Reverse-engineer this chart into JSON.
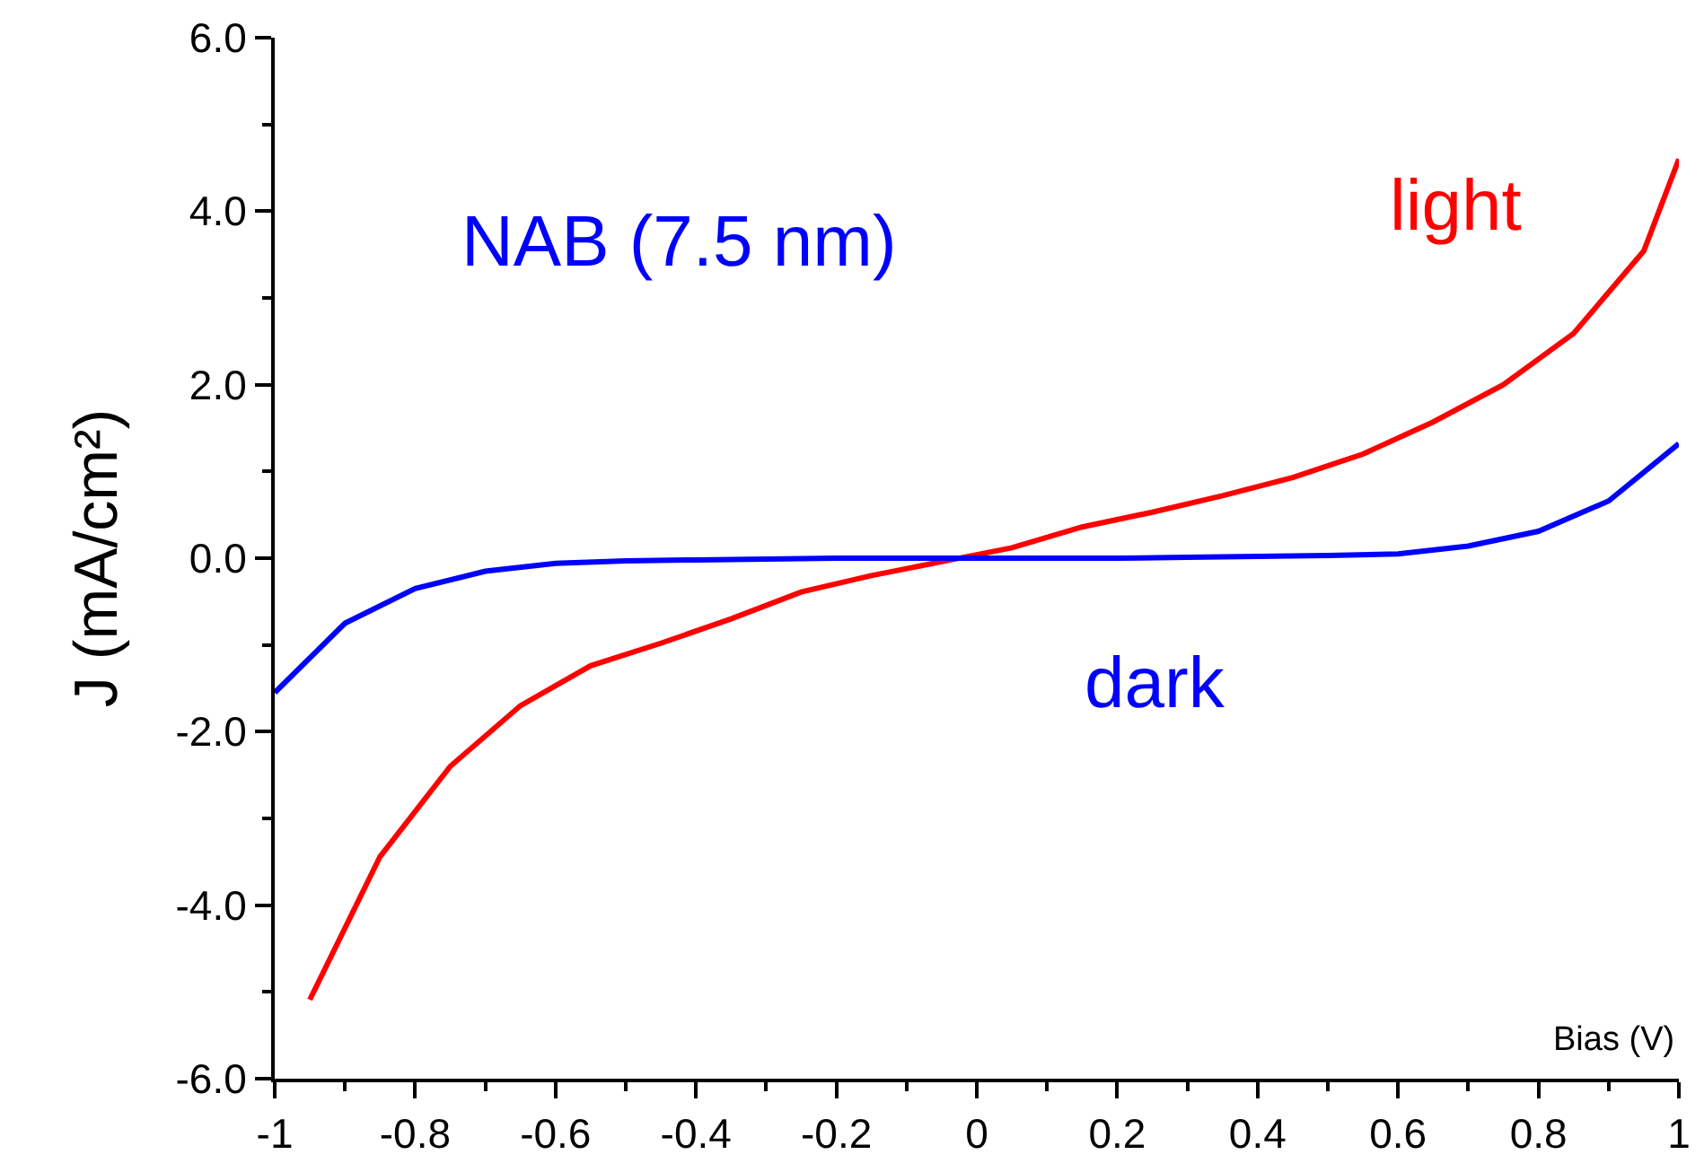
{
  "chart_data": {
    "type": "line",
    "xlabel": "Bias (V)",
    "ylabel": "J (mA/cm²)",
    "annotations": [
      "NAB (7.5 nm)"
    ],
    "series": [
      {
        "name": "light",
        "color": "#ff0000",
        "x": [
          -0.95,
          -0.85,
          -0.75,
          -0.65,
          -0.55,
          -0.45,
          -0.35,
          -0.25,
          -0.15,
          -0.05,
          0.05,
          0.15,
          0.25,
          0.35,
          0.45,
          0.55,
          0.65,
          0.75,
          0.85,
          0.95,
          1.0
        ],
        "values": [
          -5.09,
          -3.44,
          -2.4,
          -1.7,
          -1.24,
          -0.98,
          -0.7,
          -0.39,
          -0.2,
          -0.04,
          0.12,
          0.36,
          0.53,
          0.72,
          0.93,
          1.2,
          1.57,
          2.0,
          2.59,
          3.54,
          4.6
        ]
      },
      {
        "name": "dark",
        "color": "#0000ff",
        "x": [
          -1.0,
          -0.9,
          -0.8,
          -0.7,
          -0.6,
          -0.5,
          -0.4,
          -0.3,
          -0.2,
          -0.1,
          0.0,
          0.1,
          0.2,
          0.3,
          0.4,
          0.5,
          0.6,
          0.7,
          0.8,
          0.9,
          1.0
        ],
        "values": [
          -1.55,
          -0.75,
          -0.35,
          -0.15,
          -0.06,
          -0.03,
          -0.02,
          -0.01,
          0.0,
          0.0,
          0.0,
          0.0,
          0.0,
          0.01,
          0.02,
          0.03,
          0.05,
          0.14,
          0.31,
          0.66,
          1.32
        ]
      }
    ],
    "xlim": [
      -1,
      1
    ],
    "xticks": [
      -1,
      -0.8,
      -0.6,
      -0.4,
      -0.2,
      0,
      0.2,
      0.4,
      0.6,
      0.8,
      1
    ],
    "ylim": [
      -6,
      6
    ],
    "yticks": [
      {
        "value": -6,
        "label": "-6.0"
      },
      {
        "value": -4,
        "label": "-4.0"
      },
      {
        "value": -2,
        "label": "-2.0"
      },
      {
        "value": 0,
        "label": "0.0"
      },
      {
        "value": 2,
        "label": "2.0"
      },
      {
        "value": 4,
        "label": "4.0"
      },
      {
        "value": 6,
        "label": "6.0"
      }
    ],
    "legend": false,
    "marker": "none",
    "line_style": "solid"
  }
}
